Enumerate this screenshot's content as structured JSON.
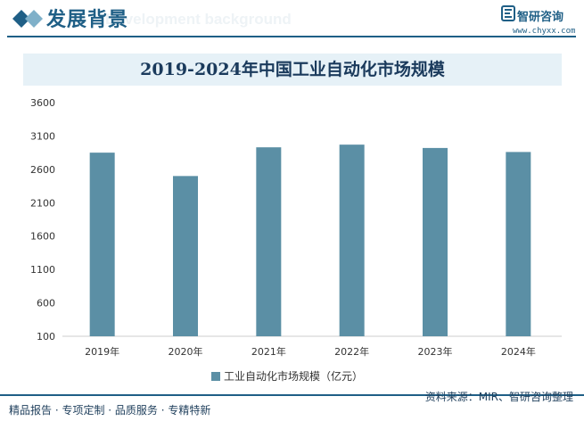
{
  "header": {
    "title": "发展背景",
    "watermark": "Development background",
    "logo_name": "智研咨询",
    "logo_url": "www.chyxx.com"
  },
  "footer": {
    "left_text": "精品报告 · 专项定制 · 品质服务 · 专精特新",
    "source": "资料来源：MIR、智研咨询整理"
  },
  "colors": {
    "bar": "#5b8fa5",
    "brand": "#1f5f86"
  },
  "chart_data": {
    "type": "bar",
    "title": "2019-2024年中国工业自动化市场规模",
    "categories": [
      "2019年",
      "2020年",
      "2021年",
      "2022年",
      "2023年",
      "2024年"
    ],
    "series": [
      {
        "name": "工业自动化市场规模（亿元）",
        "values": [
          2850,
          2500,
          2930,
          2970,
          2920,
          2860
        ]
      }
    ],
    "yticks": [
      "3600",
      "3100",
      "2600",
      "2100",
      "1600",
      "1100",
      "600",
      "100"
    ],
    "ylim": [
      100,
      3600
    ],
    "xlabel": "",
    "ylabel": "",
    "grid": false,
    "legend": "bottom"
  }
}
